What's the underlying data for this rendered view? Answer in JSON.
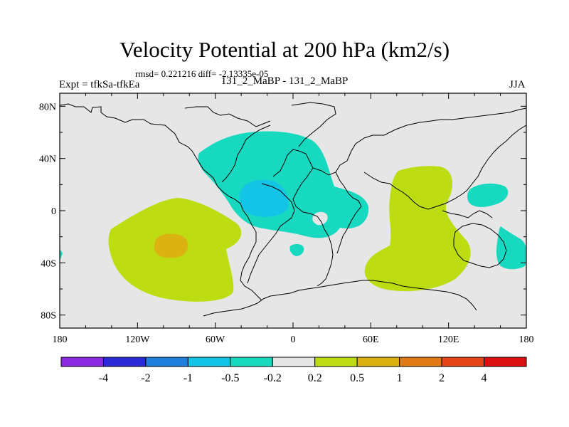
{
  "title": "Velocity Potential at 200 hPa (km2/s)",
  "stats": "rmsd= 0.221216 diff= -2.13335e-05",
  "left_label": "Expt = tfkSa-tfkEa",
  "center_label": "131_2_MaBP - 131_2_MaBP",
  "right_label": "JJA",
  "axes": {
    "x_ticks": [
      {
        "value": -180,
        "label": "180"
      },
      {
        "value": -120,
        "label": "120W"
      },
      {
        "value": -60,
        "label": "60W"
      },
      {
        "value": 0,
        "label": "0"
      },
      {
        "value": 60,
        "label": "60E"
      },
      {
        "value": 120,
        "label": "120E"
      },
      {
        "value": 180,
        "label": "180"
      }
    ],
    "y_ticks": [
      {
        "value": 80,
        "label": "80N"
      },
      {
        "value": 40,
        "label": "40N"
      },
      {
        "value": 0,
        "label": "0"
      },
      {
        "value": -40,
        "label": "40S"
      },
      {
        "value": -80,
        "label": "80S"
      }
    ]
  },
  "colorbar": {
    "colors": [
      "#8a2be2",
      "#2a2ad6",
      "#1e7fdc",
      "#13c4e6",
      "#17d9c0",
      "#e6e6e6",
      "#bddc12",
      "#dcb212",
      "#e07a14",
      "#e4461a",
      "#dc1010"
    ],
    "labels": [
      "-4",
      "-2",
      "-1",
      "-0.5",
      "-0.2",
      "0.2",
      "0.5",
      "1",
      "2",
      "4"
    ]
  },
  "colors": {
    "background": "#e6e6e6",
    "positive_weak": "#bddc12",
    "positive_mid": "#dcb212",
    "negative_weak": "#17d9c0",
    "negative_mid": "#13c4e6"
  }
}
